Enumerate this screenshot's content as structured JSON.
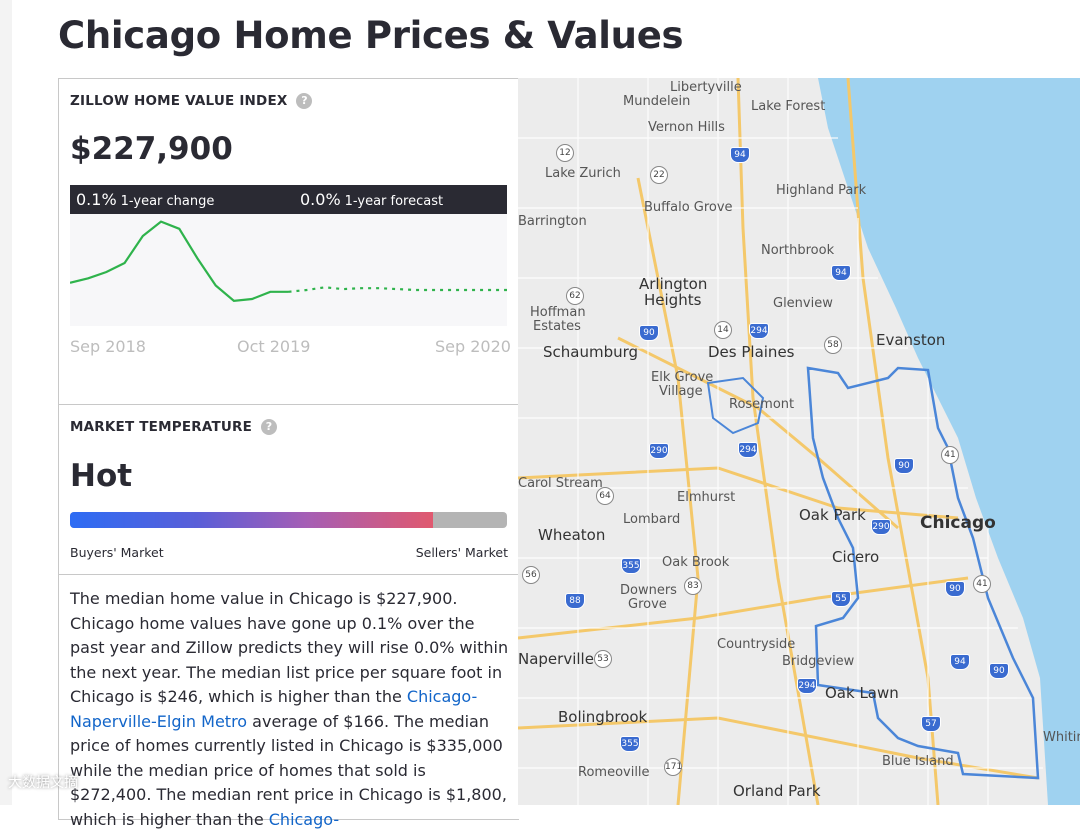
{
  "page": {
    "title": "Chicago Home Prices & Values"
  },
  "zhvi": {
    "label": "ZILLOW HOME VALUE INDEX",
    "help": "?",
    "value": "$227,900",
    "change_pct": "0.1%",
    "change_caption": "1-year change",
    "forecast_pct": "0.0%",
    "forecast_caption": "1-year forecast",
    "axis_labels": [
      "Sep 2018",
      "Oct 2019",
      "Sep 2020"
    ]
  },
  "chart_data": {
    "type": "line",
    "title": "",
    "xlabel": "",
    "ylabel": "",
    "x_ticks": [
      "Sep 2018",
      "Oct 2019",
      "Sep 2020"
    ],
    "series": [
      {
        "name": "historical",
        "style": "solid",
        "color": "#2fb34c",
        "points": [
          [
            0,
            0.28
          ],
          [
            1,
            0.33
          ],
          [
            2,
            0.4
          ],
          [
            3,
            0.5
          ],
          [
            4,
            0.8
          ],
          [
            5,
            0.96
          ],
          [
            6,
            0.88
          ],
          [
            7,
            0.55
          ],
          [
            8,
            0.25
          ],
          [
            9,
            0.08
          ],
          [
            10,
            0.1
          ],
          [
            11,
            0.18
          ],
          [
            12,
            0.18
          ]
        ]
      },
      {
        "name": "forecast",
        "style": "dashed",
        "color": "#2fb34c",
        "points": [
          [
            12,
            0.18
          ],
          [
            13,
            0.2
          ],
          [
            14,
            0.23
          ],
          [
            15,
            0.21
          ],
          [
            16,
            0.22
          ],
          [
            17,
            0.22
          ],
          [
            18,
            0.21
          ],
          [
            19,
            0.2
          ],
          [
            20,
            0.2
          ],
          [
            21,
            0.2
          ],
          [
            22,
            0.2
          ],
          [
            23,
            0.2
          ],
          [
            24,
            0.2
          ]
        ]
      }
    ],
    "x_range": [
      0,
      24
    ],
    "y_range": [
      0,
      1
    ]
  },
  "market": {
    "label": "MARKET TEMPERATURE",
    "help": "?",
    "value": "Hot",
    "temperature_fraction": 0.83,
    "left_caption": "Buyers' Market",
    "right_caption": "Sellers' Market"
  },
  "description": {
    "p1": "The median home value in Chicago is $227,900. Chicago home values have gone up 0.1% over the past year and Zillow predicts they will rise 0.0% within the next year. The median list price per square foot in Chicago is $246, which is higher than the ",
    "link1": "Chicago-Naperville-Elgin Metro",
    "p2": " average of $166. The median price of homes currently listed in Chicago is $335,000 while the median price of homes that sold is $272,400. The median rent price in Chicago is $1,800, which is higher than the ",
    "link2": "Chicago-"
  },
  "map": {
    "labels": [
      "Libertyville",
      "Mundelein",
      "Lake Forest",
      "Vernon Hills",
      "Lake Zurich",
      "Highland Park",
      "Buffalo Grove",
      "Barrington",
      "Northbrook",
      "Arlington",
      "Heights",
      "Glenview",
      "Hoffman",
      "Estates",
      "Schaumburg",
      "Des Plaines",
      "Evanston",
      "Elk Grove",
      "Village",
      "Rosemont",
      "Carol Stream",
      "Elmhurst",
      "Oak Park",
      "Chicago",
      "Lombard",
      "Wheaton",
      "Cicero",
      "Oak Brook",
      "Downers",
      "Grove",
      "Countryside",
      "Naperville",
      "Bridgeview",
      "Oak Lawn",
      "Bolingbrook",
      "Blue Island",
      "Romeoville",
      "Orland Park",
      "Whitin"
    ],
    "shields": [
      "12",
      "94",
      "22",
      "94",
      "62",
      "90",
      "14",
      "294",
      "58",
      "290",
      "294",
      "90",
      "41",
      "64",
      "290",
      "355",
      "83",
      "56",
      "88",
      "55",
      "90",
      "41",
      "53",
      "294",
      "94",
      "90",
      "57",
      "355",
      "171"
    ]
  },
  "watermark": "大数据文摘"
}
